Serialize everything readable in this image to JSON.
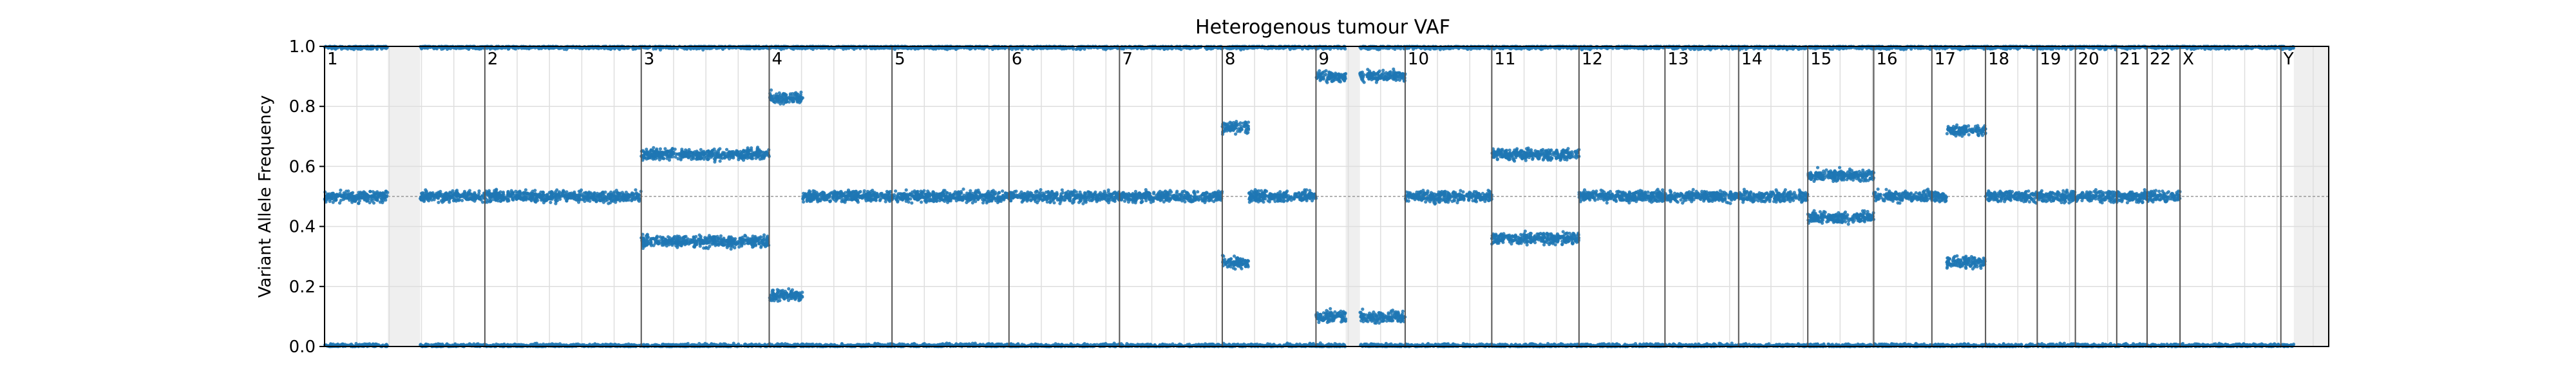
{
  "chart_data": {
    "type": "scatter",
    "title": "Heterogenous tumour VAF",
    "xlabel": "",
    "ylabel": "Variant Allele Frequency",
    "ylim": [
      0,
      1
    ],
    "yticks": [
      "0.0",
      "0.2",
      "0.4",
      "0.6",
      "0.8",
      "1.0"
    ],
    "x_unit": "genome position (Mb)",
    "xlim": [
      0,
      3101
    ],
    "grid": true,
    "reference_line": 0.5,
    "point_color": "#1f77b4",
    "shade_color": "#efefef",
    "chromosomes": [
      {
        "label": "1",
        "start": 0,
        "length": 248
      },
      {
        "label": "2",
        "start": 248,
        "length": 242
      },
      {
        "label": "3",
        "start": 490,
        "length": 198
      },
      {
        "label": "4",
        "start": 688,
        "length": 190
      },
      {
        "label": "5",
        "start": 878,
        "length": 181
      },
      {
        "label": "6",
        "start": 1059,
        "length": 171
      },
      {
        "label": "7",
        "start": 1230,
        "length": 159
      },
      {
        "label": "8",
        "start": 1389,
        "length": 145
      },
      {
        "label": "9",
        "start": 1534,
        "length": 138
      },
      {
        "label": "10",
        "start": 1672,
        "length": 134
      },
      {
        "label": "11",
        "start": 1806,
        "length": 135
      },
      {
        "label": "12",
        "start": 1941,
        "length": 133
      },
      {
        "label": "13",
        "start": 2074,
        "length": 114
      },
      {
        "label": "14",
        "start": 2188,
        "length": 107
      },
      {
        "label": "15",
        "start": 2295,
        "length": 102
      },
      {
        "label": "16",
        "start": 2397,
        "length": 90
      },
      {
        "label": "17",
        "start": 2487,
        "length": 83
      },
      {
        "label": "18",
        "start": 2570,
        "length": 80
      },
      {
        "label": "19",
        "start": 2650,
        "length": 59
      },
      {
        "label": "20",
        "start": 2709,
        "length": 64
      },
      {
        "label": "21",
        "start": 2773,
        "length": 47
      },
      {
        "label": "22",
        "start": 2820,
        "length": 51
      },
      {
        "label": "X",
        "start": 2871,
        "length": 156
      },
      {
        "label": "Y",
        "start": 3027,
        "length": 57
      }
    ],
    "shaded_regions": [
      {
        "start": 98,
        "end": 148
      },
      {
        "start": 1580,
        "end": 1602
      },
      {
        "start": 3047,
        "end": 3101
      }
    ],
    "segments": [
      {
        "start": 0,
        "end": 98,
        "vafs": [
          0.0,
          0.5,
          1.0
        ]
      },
      {
        "start": 148,
        "end": 490,
        "vafs": [
          0.0,
          0.5,
          1.0
        ]
      },
      {
        "start": 490,
        "end": 688,
        "vafs": [
          0.0,
          0.35,
          0.64,
          1.0
        ]
      },
      {
        "start": 688,
        "end": 740,
        "vafs": [
          0.0,
          0.17,
          0.83,
          1.0
        ]
      },
      {
        "start": 740,
        "end": 1389,
        "vafs": [
          0.0,
          0.5,
          1.0
        ]
      },
      {
        "start": 1389,
        "end": 1430,
        "vafs": [
          0.0,
          0.28,
          0.73,
          1.0
        ]
      },
      {
        "start": 1430,
        "end": 1534,
        "vafs": [
          0.0,
          0.5,
          1.0
        ]
      },
      {
        "start": 1534,
        "end": 1580,
        "vafs": [
          0.0,
          0.1,
          0.9,
          1.0
        ]
      },
      {
        "start": 1602,
        "end": 1672,
        "vafs": [
          0.0,
          0.1,
          0.9,
          1.0
        ]
      },
      {
        "start": 1672,
        "end": 1806,
        "vafs": [
          0.0,
          0.5,
          1.0
        ]
      },
      {
        "start": 1806,
        "end": 1941,
        "vafs": [
          0.0,
          0.36,
          0.64,
          1.0
        ]
      },
      {
        "start": 1941,
        "end": 2295,
        "vafs": [
          0.0,
          0.5,
          1.0
        ]
      },
      {
        "start": 2295,
        "end": 2397,
        "vafs": [
          0.0,
          0.43,
          0.57,
          1.0
        ]
      },
      {
        "start": 2397,
        "end": 2510,
        "vafs": [
          0.0,
          0.5,
          1.0
        ]
      },
      {
        "start": 2510,
        "end": 2570,
        "vafs": [
          0.0,
          0.28,
          0.72,
          1.0
        ]
      },
      {
        "start": 2570,
        "end": 2871,
        "vafs": [
          0.0,
          0.5,
          1.0
        ]
      },
      {
        "start": 2871,
        "end": 3047,
        "vafs": [
          0.0,
          1.0
        ]
      }
    ]
  }
}
